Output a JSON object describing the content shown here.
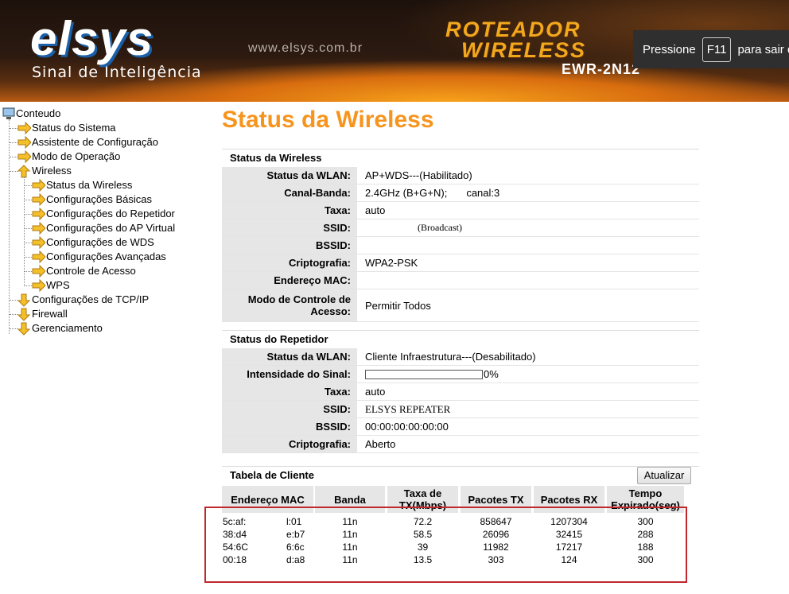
{
  "header": {
    "logo": "elsys",
    "tagline": "Sinal de Inteligência",
    "url": "www.elsys.com.br",
    "product_line1": "ROTEADOR",
    "product_line2": "WIRELESS",
    "model": "EWR-2N12",
    "notice_before": "Pressione",
    "notice_key": "F11",
    "notice_after": "para sair de"
  },
  "sidebar": {
    "root": "Conteudo",
    "items": [
      {
        "label": "Status do Sistema"
      },
      {
        "label": "Assistente de Configuração"
      },
      {
        "label": "Modo de Operação"
      },
      {
        "label": "Wireless",
        "children": [
          "Status da Wireless",
          "Configurações Básicas",
          "Configurações do Repetidor",
          "Configurações do AP Virtual",
          "Configurações de WDS",
          "Configurações Avançadas",
          "Controle de Acesso",
          "WPS"
        ]
      },
      {
        "label": "Configurações de TCP/IP"
      },
      {
        "label": "Firewall"
      },
      {
        "label": "Gerenciamento"
      }
    ]
  },
  "main": {
    "title": "Status da Wireless",
    "wireless": {
      "heading": "Status da Wireless",
      "rows": [
        [
          "Status da WLAN:",
          "AP+WDS---(Habilitado)"
        ],
        [
          "Canal-Banda:",
          "2.4GHz (B+G+N);",
          "canal:3"
        ],
        [
          "Taxa:",
          "auto"
        ],
        [
          "SSID:",
          "(Broadcast)"
        ],
        [
          "BSSID:"
        ],
        [
          "Criptografia:",
          "WPA2-PSK"
        ],
        [
          "Endereço MAC:"
        ],
        [
          "Modo de Controle de Acesso:",
          "Permitir Todos"
        ]
      ]
    },
    "repeater": {
      "heading": "Status do Repetidor",
      "rows": [
        [
          "Status da WLAN:",
          "Cliente Infraestrutura---(Desabilitado)"
        ],
        [
          "Intensidade do Sinal:",
          "0%"
        ],
        [
          "Taxa:",
          "auto"
        ],
        [
          "SSID:",
          "ELSYS REPEATER"
        ],
        [
          "BSSID:",
          "00:00:00:00:00:00"
        ],
        [
          "Criptografia:",
          "Aberto"
        ]
      ]
    },
    "clients": {
      "heading": "Tabela de Cliente",
      "refresh": "Atualizar",
      "columns": [
        "Endereço MAC",
        "Banda",
        "Taxa de TX(Mbps)",
        "Pacotes TX",
        "Pacotes RX",
        "Tempo Expirado(seg)"
      ],
      "rows": [
        [
          [
            "5c:af:",
            "l:01"
          ],
          "11n",
          72.2,
          858647,
          1207304,
          300
        ],
        [
          [
            "38:d4",
            "e:b7"
          ],
          "11n",
          58.5,
          26096,
          32415,
          288
        ],
        [
          [
            "54:6C",
            "6:6c"
          ],
          "11n",
          39,
          11982,
          17217,
          188
        ],
        [
          [
            "00:18",
            "d:a8"
          ],
          "11n",
          13.5,
          303,
          124,
          300
        ]
      ]
    }
  }
}
